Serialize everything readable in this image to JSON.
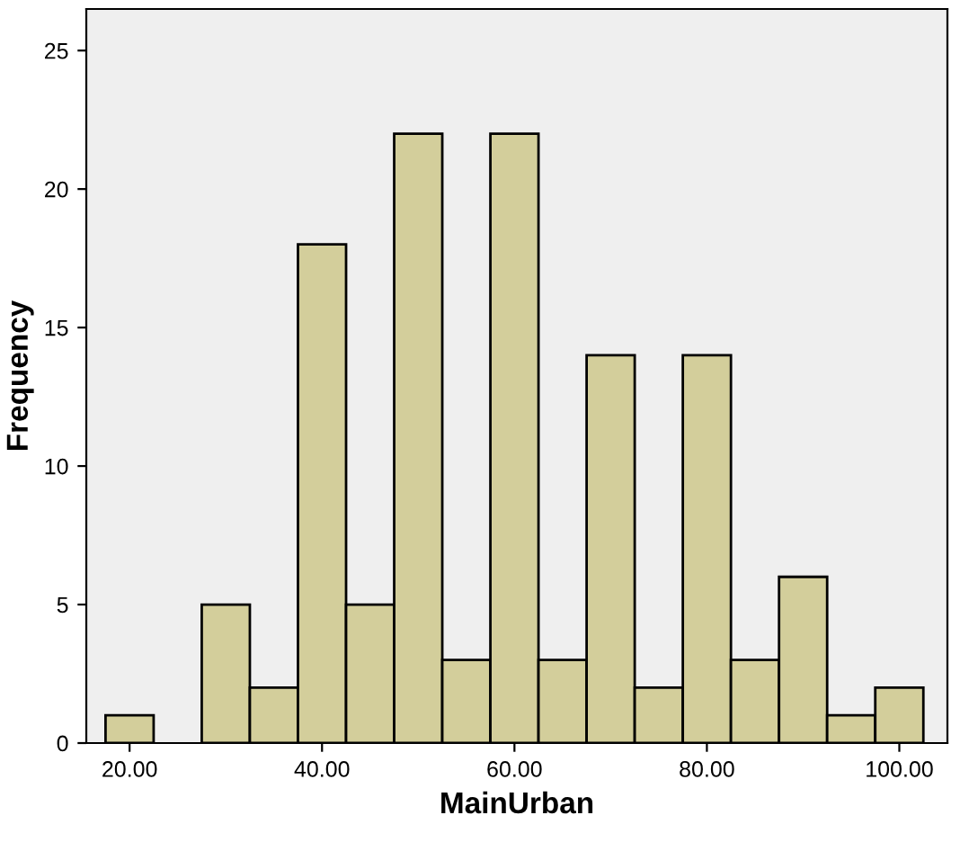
{
  "chart_data": {
    "type": "histogram",
    "xlabel": "MainUrban",
    "ylabel": "Frequency",
    "bins": [
      17.5,
      22.5,
      27.5,
      32.5,
      37.5,
      42.5,
      47.5,
      52.5,
      57.5,
      62.5,
      67.5,
      72.5,
      77.5,
      82.5,
      87.5,
      92.5,
      97.5,
      102.5
    ],
    "values": [
      1,
      0,
      5,
      2,
      18,
      5,
      22,
      3,
      22,
      3,
      14,
      2,
      14,
      3,
      6,
      1,
      2
    ],
    "color": "#d3ce9b",
    "xlim": [
      15.5,
      105
    ],
    "xticks": [
      {
        "value": 20,
        "label": "20.00"
      },
      {
        "value": 40,
        "label": "40.00"
      },
      {
        "value": 60,
        "label": "60.00"
      },
      {
        "value": 80,
        "label": "80.00"
      },
      {
        "value": 100,
        "label": "100.00"
      }
    ],
    "ylim": [
      0,
      26.5
    ],
    "yticks": [
      0,
      5,
      10,
      15,
      20,
      25
    ],
    "grid": false
  }
}
